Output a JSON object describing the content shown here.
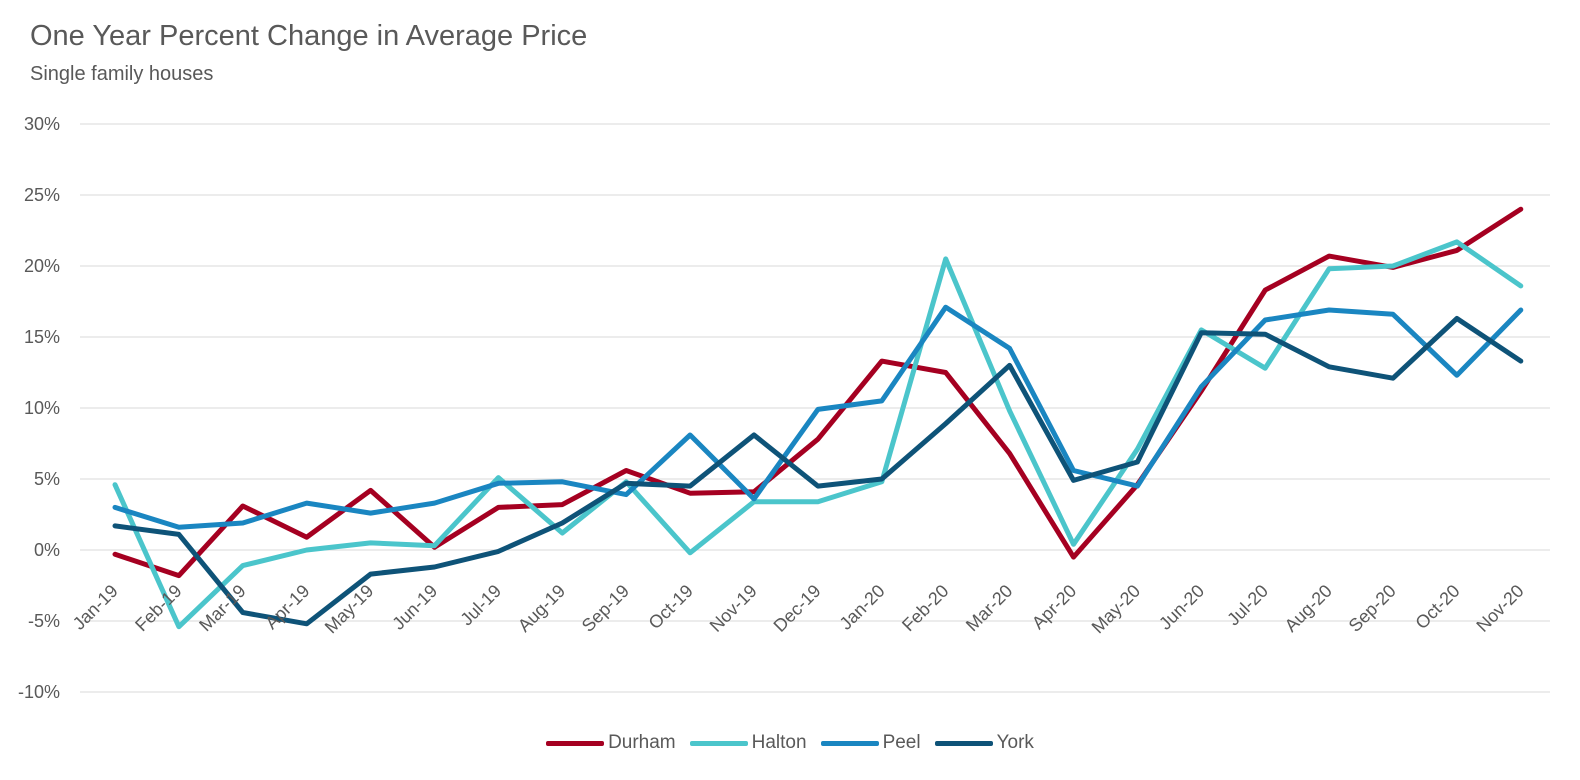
{
  "chart_data": {
    "type": "line",
    "title": "One Year Percent Change in Average Price",
    "subtitle": "Single family houses",
    "ylim": [
      -10,
      30
    ],
    "yticks": [
      "30%",
      "25%",
      "20%",
      "15%",
      "10%",
      "5%",
      "0%",
      "-5%",
      "-10%"
    ],
    "ytick_values": [
      30,
      25,
      20,
      15,
      10,
      5,
      0,
      -5,
      -10
    ],
    "categories": [
      "Jan-19",
      "Feb-19",
      "Mar-19",
      "Apr-19",
      "May-19",
      "Jun-19",
      "Jul-19",
      "Aug-19",
      "Sep-19",
      "Oct-19",
      "Nov-19",
      "Dec-19",
      "Jan-20",
      "Feb-20",
      "Mar-20",
      "Apr-20",
      "May-20",
      "Jun-20",
      "Jul-20",
      "Aug-20",
      "Sep-20",
      "Oct-20",
      "Nov-20"
    ],
    "grid": true,
    "legend_position": "bottom",
    "series": [
      {
        "name": "Durham",
        "color": "#a50021",
        "values": [
          -0.3,
          -1.8,
          3.1,
          0.9,
          4.2,
          0.2,
          3.0,
          3.2,
          5.6,
          4.0,
          4.1,
          7.8,
          13.3,
          12.5,
          6.8,
          -0.5,
          4.6,
          11.2,
          18.3,
          20.7,
          19.9,
          21.1,
          24.0
        ]
      },
      {
        "name": "Halton",
        "color": "#4bc5cb",
        "values": [
          4.6,
          -5.4,
          -1.1,
          0.0,
          0.5,
          0.3,
          5.1,
          1.2,
          4.8,
          -0.2,
          3.4,
          3.4,
          4.8,
          20.5,
          9.8,
          0.4,
          7.1,
          15.5,
          12.8,
          19.8,
          20.0,
          21.7,
          18.6
        ]
      },
      {
        "name": "Peel",
        "color": "#1a86c1",
        "values": [
          3.0,
          1.6,
          1.9,
          3.3,
          2.6,
          3.3,
          4.7,
          4.8,
          3.9,
          8.1,
          3.6,
          9.9,
          10.5,
          17.1,
          14.2,
          5.6,
          4.5,
          11.5,
          16.2,
          16.9,
          16.6,
          12.3,
          16.9
        ]
      },
      {
        "name": "York",
        "color": "#0e5378",
        "values": [
          1.7,
          1.1,
          -4.4,
          -5.2,
          -1.7,
          -1.2,
          -0.1,
          1.9,
          4.7,
          4.5,
          8.1,
          4.5,
          5.0,
          8.9,
          13.0,
          4.9,
          6.2,
          15.3,
          15.2,
          12.9,
          12.1,
          16.3,
          13.3
        ]
      }
    ]
  }
}
